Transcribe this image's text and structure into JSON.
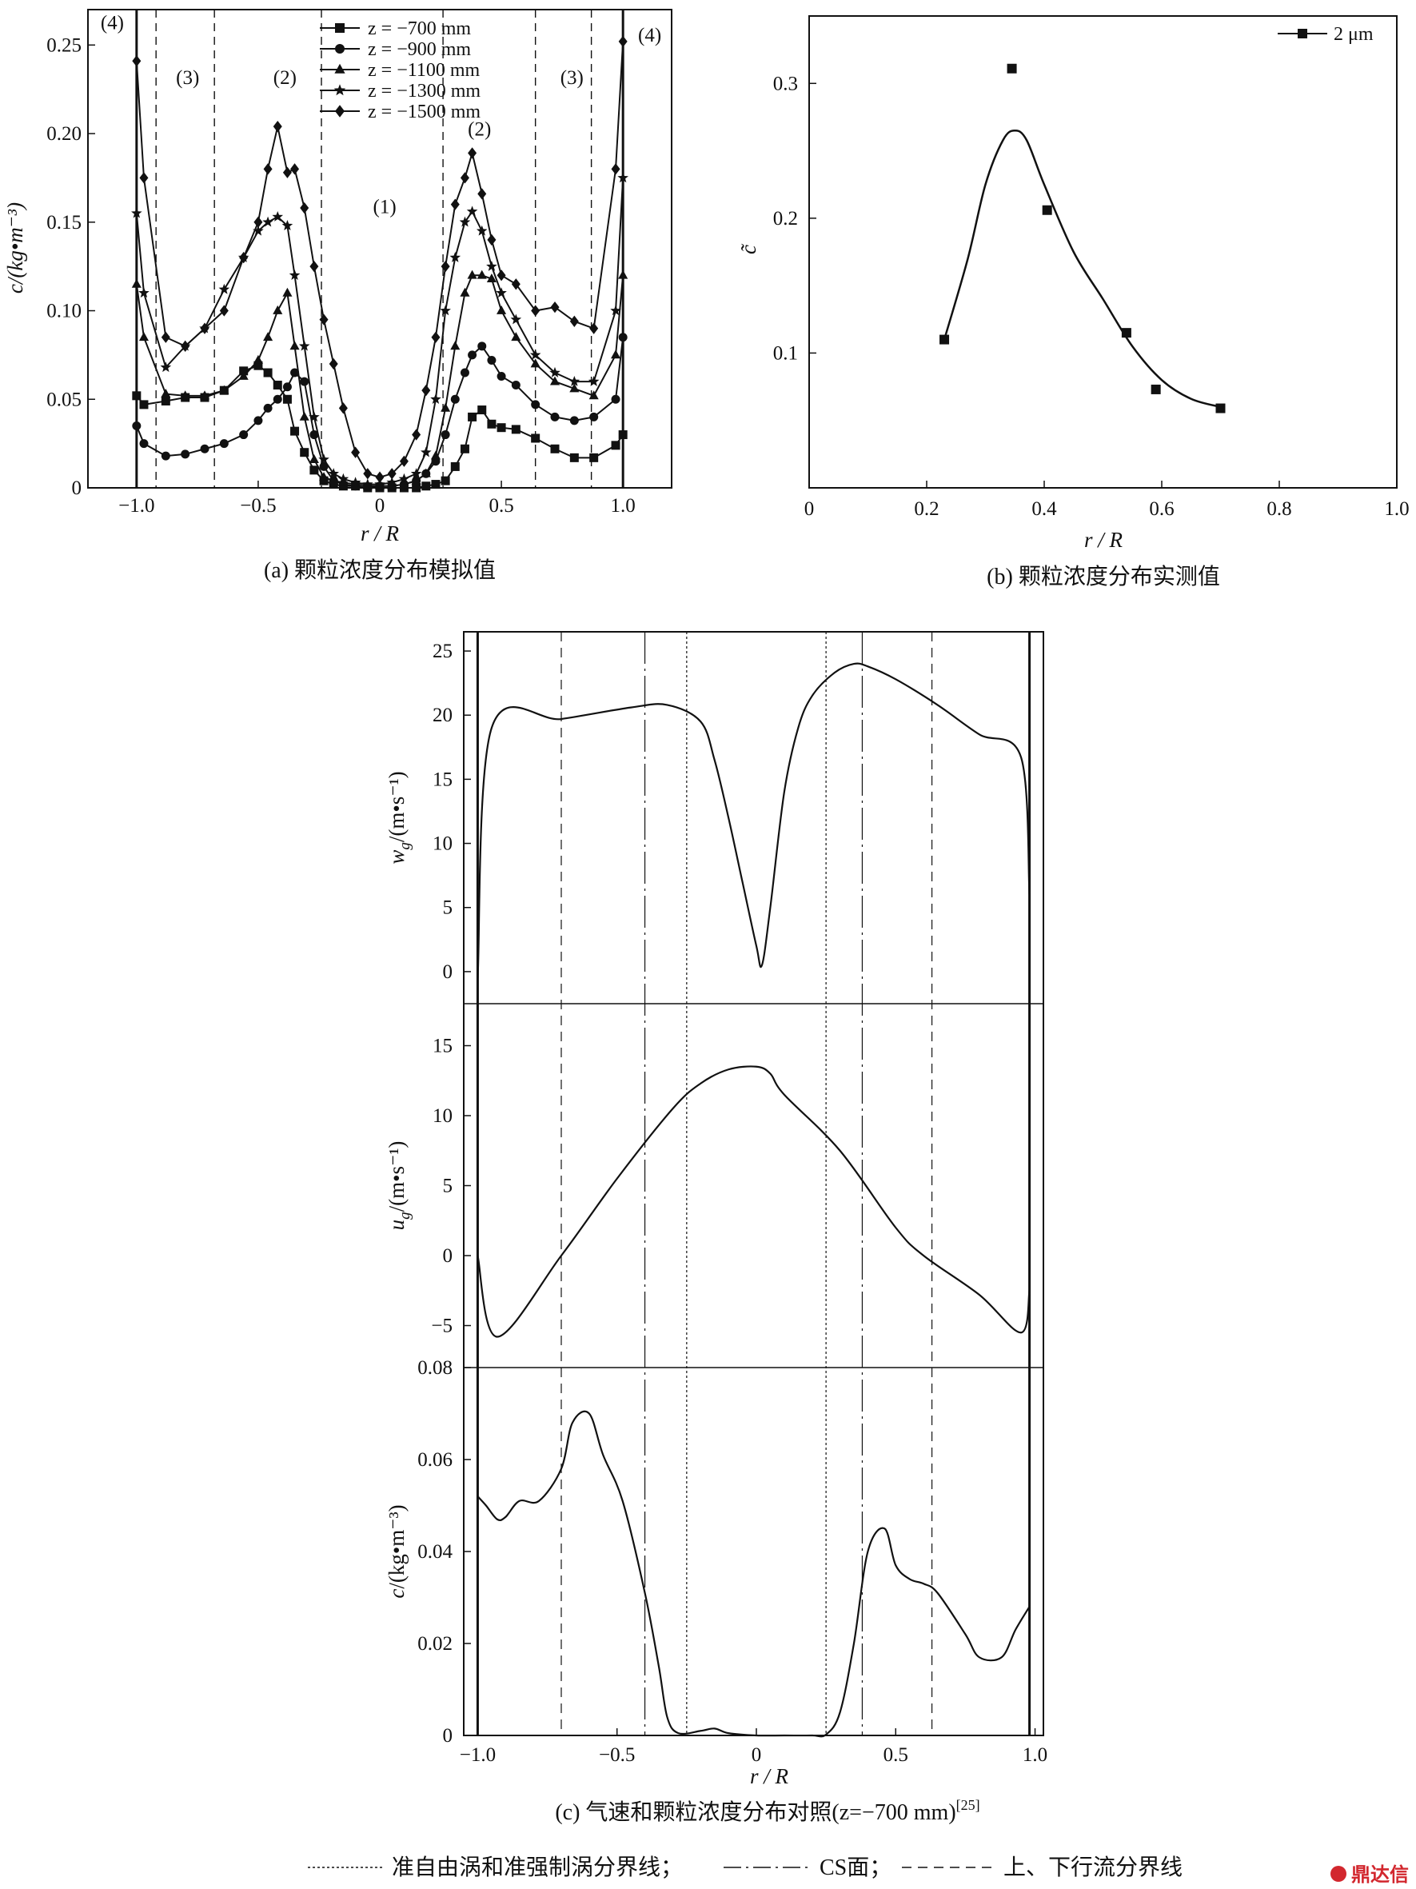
{
  "legend_bottom": {
    "dotted_label": "准自由涡和准强制涡分界线；",
    "dashdot_label": "CS面；",
    "dashed_label": "上、下行流分界线"
  },
  "watermark": "鼎达信",
  "chart_data": [
    {
      "id": "a",
      "type": "line",
      "caption": "(a) 颗粒浓度分布模拟值",
      "xlabel": "r / R",
      "ylabel": "c/(kg•m⁻³)",
      "xlim": [
        -1.2,
        1.2
      ],
      "ylim": [
        0,
        0.27
      ],
      "xticks": [
        -1.0,
        -0.5,
        0,
        0.5,
        1.0
      ],
      "xtick_labels": [
        "−1.0",
        "−0.5",
        "0",
        "0.5",
        "1.0"
      ],
      "yticks": [
        0,
        0.05,
        0.1,
        0.15,
        0.2,
        0.25
      ],
      "ytick_labels": [
        "0",
        "0.05",
        "0.10",
        "0.15",
        "0.20",
        "0.25"
      ],
      "legend_position": "top-center",
      "x": [
        -1.0,
        -0.97,
        -0.88,
        -0.8,
        -0.72,
        -0.64,
        -0.56,
        -0.5,
        -0.46,
        -0.42,
        -0.38,
        -0.35,
        -0.31,
        -0.27,
        -0.23,
        -0.19,
        -0.15,
        -0.1,
        -0.05,
        0,
        0.05,
        0.1,
        0.15,
        0.19,
        0.23,
        0.27,
        0.31,
        0.35,
        0.38,
        0.42,
        0.46,
        0.5,
        0.56,
        0.64,
        0.72,
        0.8,
        0.88,
        0.97,
        1.0
      ],
      "series": [
        {
          "name": "z = −700 mm",
          "marker": "square",
          "values": [
            0.052,
            0.047,
            0.049,
            0.051,
            0.051,
            0.055,
            0.066,
            0.069,
            0.065,
            0.058,
            0.05,
            0.032,
            0.02,
            0.01,
            0.004,
            0.002,
            0.001,
            0.001,
            0.0,
            0.0,
            0.0,
            0.0,
            0.0,
            0.001,
            0.002,
            0.004,
            0.012,
            0.022,
            0.04,
            0.044,
            0.036,
            0.034,
            0.033,
            0.028,
            0.022,
            0.017,
            0.017,
            0.024,
            0.03
          ]
        },
        {
          "name": "z = −900 mm",
          "marker": "circle",
          "values": [
            0.035,
            0.025,
            0.018,
            0.019,
            0.022,
            0.025,
            0.03,
            0.038,
            0.045,
            0.05,
            0.057,
            0.065,
            0.06,
            0.03,
            0.012,
            0.004,
            0.002,
            0.001,
            0.0,
            0.001,
            0.001,
            0.002,
            0.004,
            0.008,
            0.015,
            0.03,
            0.05,
            0.065,
            0.075,
            0.08,
            0.072,
            0.063,
            0.058,
            0.047,
            0.04,
            0.038,
            0.04,
            0.05,
            0.085
          ]
        },
        {
          "name": "z = −1100 mm",
          "marker": "triangle",
          "values": [
            0.115,
            0.085,
            0.053,
            0.052,
            0.052,
            0.055,
            0.063,
            0.072,
            0.085,
            0.1,
            0.11,
            0.08,
            0.04,
            0.016,
            0.006,
            0.004,
            0.003,
            0.002,
            0.001,
            0.001,
            0.001,
            0.002,
            0.004,
            0.008,
            0.018,
            0.045,
            0.08,
            0.11,
            0.12,
            0.12,
            0.118,
            0.1,
            0.085,
            0.07,
            0.06,
            0.056,
            0.052,
            0.075,
            0.12
          ]
        },
        {
          "name": "z = −1300 mm",
          "marker": "star",
          "values": [
            0.155,
            0.11,
            0.068,
            0.08,
            0.09,
            0.112,
            0.13,
            0.145,
            0.15,
            0.153,
            0.148,
            0.12,
            0.08,
            0.04,
            0.016,
            0.008,
            0.005,
            0.003,
            0.002,
            0.002,
            0.003,
            0.005,
            0.008,
            0.02,
            0.05,
            0.1,
            0.13,
            0.15,
            0.156,
            0.145,
            0.125,
            0.11,
            0.095,
            0.075,
            0.065,
            0.06,
            0.06,
            0.1,
            0.175
          ]
        },
        {
          "name": "z = −1500 mm",
          "marker": "diamond",
          "values": [
            0.241,
            0.175,
            0.085,
            0.08,
            0.09,
            0.1,
            0.13,
            0.15,
            0.18,
            0.204,
            0.178,
            0.18,
            0.158,
            0.125,
            0.095,
            0.07,
            0.045,
            0.02,
            0.008,
            0.006,
            0.008,
            0.015,
            0.03,
            0.055,
            0.085,
            0.125,
            0.16,
            0.175,
            0.189,
            0.166,
            0.14,
            0.12,
            0.115,
            0.1,
            0.102,
            0.094,
            0.09,
            0.18,
            0.252
          ]
        }
      ],
      "boundaries": {
        "solid": [
          -1.0,
          1.0
        ],
        "dashed": [
          -0.92,
          -0.68,
          -0.24,
          0.26,
          0.64,
          0.87
        ]
      },
      "region_labels": [
        {
          "text": "(4)",
          "x": -1.1,
          "y": 0.259
        },
        {
          "text": "(3)",
          "x": -0.79,
          "y": 0.228
        },
        {
          "text": "(2)",
          "x": -0.39,
          "y": 0.228
        },
        {
          "text": "(1)",
          "x": 0.02,
          "y": 0.155
        },
        {
          "text": "(2)",
          "x": 0.41,
          "y": 0.199
        },
        {
          "text": "(3)",
          "x": 0.79,
          "y": 0.228
        },
        {
          "text": "(4)",
          "x": 1.11,
          "y": 0.252
        }
      ]
    },
    {
      "id": "b",
      "type": "scatter",
      "caption": "(b) 颗粒浓度分布实测值",
      "xlabel": "r / R",
      "ylabel": "c̃",
      "xlim": [
        0,
        1.0
      ],
      "ylim": [
        0,
        0.35
      ],
      "xticks": [
        0,
        0.2,
        0.4,
        0.6,
        0.8,
        1.0
      ],
      "xtick_labels": [
        "0",
        "0.2",
        "0.4",
        "0.6",
        "0.8",
        "1.0"
      ],
      "yticks": [
        0.1,
        0.2,
        0.3
      ],
      "ytick_labels": [
        "0.1",
        "0.2",
        "0.3"
      ],
      "legend_position": "top-right",
      "series": [
        {
          "name": "2 μm",
          "marker": "square",
          "x": [
            0.23,
            0.345,
            0.405,
            0.54,
            0.59,
            0.7
          ],
          "y": [
            0.11,
            0.311,
            0.206,
            0.115,
            0.073,
            0.059
          ]
        }
      ],
      "fit_curve": {
        "x": [
          0.23,
          0.27,
          0.3,
          0.33,
          0.35,
          0.37,
          0.4,
          0.45,
          0.5,
          0.55,
          0.6,
          0.65,
          0.7
        ],
        "y": [
          0.11,
          0.17,
          0.225,
          0.258,
          0.265,
          0.258,
          0.225,
          0.175,
          0.14,
          0.105,
          0.08,
          0.066,
          0.06
        ]
      }
    },
    {
      "id": "c",
      "type": "line",
      "caption_main": "(c) 气速和颗粒浓度分布对照(z=−700 mm)",
      "caption_ref": "[25]",
      "xlabel": "r / R",
      "xlim": [
        -1.05,
        1.03
      ],
      "xticks": [
        -1.0,
        -0.5,
        0,
        0.5,
        1.0
      ],
      "xtick_labels": [
        "−1.0",
        "−0.5",
        "0",
        "0.5",
        "1.0"
      ],
      "boundaries": {
        "solid": [
          -1.0,
          0.98
        ],
        "dotted": [
          -0.25,
          0.25
        ],
        "dashdot": [
          -0.4,
          0.38
        ],
        "dashed": [
          -0.7,
          0.63
        ]
      },
      "panels": [
        {
          "name": "wg",
          "ylabel": "w",
          "ylabel_sub": "g",
          "ylabel_unit": "/(m•s⁻¹)",
          "ylim": [
            -2.5,
            26.5
          ],
          "yticks": [
            0,
            5,
            10,
            15,
            20,
            25
          ],
          "ytick_labels": [
            "0",
            "5",
            "10",
            "15",
            "20",
            "25"
          ],
          "x": [
            -1.0,
            -0.95,
            -0.7,
            -0.45,
            -0.32,
            -0.2,
            -0.15,
            -0.1,
            -0.05,
            0.0,
            0.02,
            0.05,
            0.1,
            0.15,
            0.2,
            0.28,
            0.35,
            0.4,
            0.5,
            0.65,
            0.8,
            0.95,
            0.98
          ],
          "values": [
            -0.5,
            19.0,
            19.7,
            20.6,
            20.8,
            19.5,
            16.5,
            12.0,
            7.0,
            2.0,
            0.5,
            5.0,
            14.0,
            19.0,
            21.5,
            23.3,
            24.0,
            23.8,
            22.8,
            20.8,
            18.5,
            16.7,
            6.0
          ]
        },
        {
          "name": "ug",
          "ylabel": "u",
          "ylabel_sub": "g",
          "ylabel_unit": "/(m•s⁻¹)",
          "ylim": [
            -8,
            18
          ],
          "yticks": [
            -5,
            0,
            5,
            10,
            15
          ],
          "ytick_labels": [
            "−5",
            "0",
            "5",
            "10",
            "15"
          ],
          "x": [
            -1.0,
            -0.93,
            -0.7,
            -0.5,
            -0.3,
            -0.2,
            -0.1,
            0.0,
            0.05,
            0.1,
            0.3,
            0.5,
            0.6,
            0.8,
            0.95,
            0.98
          ],
          "values": [
            0.0,
            -5.8,
            0.0,
            5.5,
            10.5,
            12.3,
            13.3,
            13.5,
            13.0,
            11.5,
            7.5,
            2.0,
            0.0,
            -2.8,
            -5.5,
            -2.5
          ]
        },
        {
          "name": "c",
          "ylabel": "c",
          "ylabel_sub": "",
          "ylabel_unit": "/(kg•m⁻³)",
          "ylim": [
            0,
            0.08
          ],
          "yticks": [
            0,
            0.02,
            0.04,
            0.06,
            0.08
          ],
          "ytick_labels": [
            "0",
            "0.02",
            "0.04",
            "0.06",
            "0.08"
          ],
          "x": [
            -1.0,
            -0.97,
            -0.93,
            -0.9,
            -0.85,
            -0.78,
            -0.7,
            -0.66,
            -0.6,
            -0.55,
            -0.48,
            -0.4,
            -0.35,
            -0.32,
            -0.28,
            -0.2,
            -0.15,
            -0.1,
            0.0,
            0.1,
            0.2,
            0.25,
            0.3,
            0.35,
            0.4,
            0.46,
            0.5,
            0.55,
            0.6,
            0.65,
            0.75,
            0.8,
            0.88,
            0.93,
            0.98
          ],
          "values": [
            0.052,
            0.05,
            0.047,
            0.0475,
            0.051,
            0.051,
            0.058,
            0.068,
            0.07,
            0.061,
            0.051,
            0.031,
            0.015,
            0.004,
            0.0005,
            0.001,
            0.0015,
            0.0005,
            0.0,
            0.0,
            0.0,
            0.0002,
            0.005,
            0.02,
            0.04,
            0.045,
            0.037,
            0.034,
            0.033,
            0.031,
            0.022,
            0.017,
            0.017,
            0.023,
            0.028
          ]
        }
      ]
    }
  ]
}
